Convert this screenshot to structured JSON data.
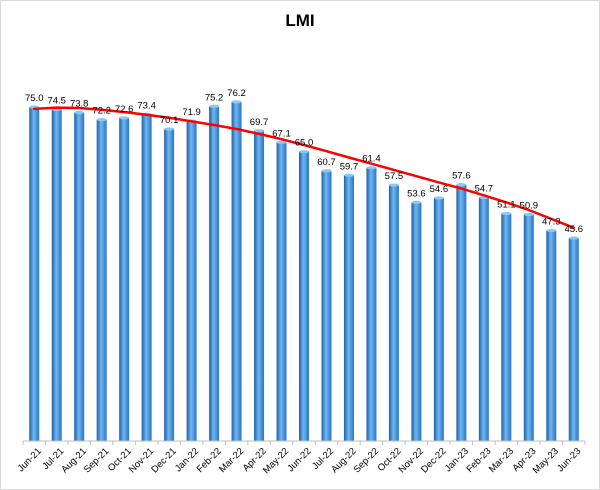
{
  "chart_data": {
    "type": "bar",
    "title": "LMI",
    "xlabel": "",
    "ylabel": "",
    "grid": false,
    "legend": "none",
    "ylim": [
      0,
      82
    ],
    "categories": [
      "Jun-21",
      "Jul-21",
      "Aug-21",
      "Sep-21",
      "Oct-21",
      "Nov-21",
      "Dec-21",
      "Jan-22",
      "Feb-22",
      "Mar-22",
      "Apr-22",
      "May-22",
      "Jun-22",
      "Jul-22",
      "Aug-22",
      "Sep-22",
      "Oct-22",
      "Nov-22",
      "Dec-22",
      "Jan-23",
      "Feb-23",
      "Mar-23",
      "Apr-23",
      "May-23",
      "Jun-23"
    ],
    "series": [
      {
        "type": "bar",
        "values": [
          75.0,
          74.5,
          73.8,
          72.2,
          72.6,
          73.4,
          70.1,
          71.9,
          75.2,
          76.2,
          69.7,
          67.1,
          65.0,
          60.7,
          59.7,
          61.4,
          57.5,
          53.6,
          54.6,
          57.6,
          54.7,
          51.1,
          50.9,
          47.3,
          45.6
        ],
        "labels": [
          "75.0",
          "74.5",
          "73.8",
          "72.2",
          "72.6",
          "73.4",
          "70.1",
          "71.9",
          "75.2",
          "76.2",
          "69.7",
          "67.1",
          "65.0",
          "60.7",
          "59.7",
          "61.4",
          "57.5",
          "53.6",
          "54.6",
          "57.6",
          "54.7",
          "51.1",
          "50.9",
          "47.3",
          "45.6"
        ],
        "color": "#3b8fd9"
      },
      {
        "type": "line",
        "values": [
          74.6,
          74.9,
          74.8,
          74.4,
          73.9,
          73.3,
          72.6,
          71.8,
          71.0,
          70.1,
          69.0,
          67.8,
          66.5,
          65.1,
          63.7,
          62.3,
          60.9,
          59.5,
          58.1,
          56.7,
          55.2,
          53.6,
          51.9,
          49.9,
          47.9
        ],
        "color": "#ff0000"
      }
    ]
  }
}
